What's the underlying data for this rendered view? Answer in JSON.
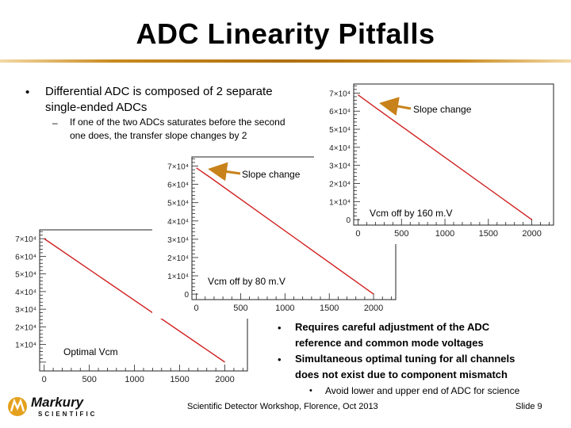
{
  "slide": {
    "title": "ADC Linearity Pitfalls",
    "bullet_1": "Differential ADC is composed of 2 separate single-ended ADCs",
    "sub_bullet_1": "If one of the two ADCs saturates before the second one does, the transfer slope changes by 2",
    "right_bullet_1": "Requires careful adjustment of the ADC reference and common mode voltages",
    "right_bullet_2": "Simultaneous optimal tuning for all channels does not exist due to component mismatch",
    "right_sub_bullet_1": "Avoid lower and upper end of ADC for science",
    "footer": "Scientific Detector Workshop, Florence, Oct 2013",
    "slide_number": "Slide 9",
    "bullet_glyph": "•",
    "dash_glyph": "–"
  },
  "logo": {
    "name": "Markury",
    "subtitle": "SCIENTIFIC",
    "accent_color": "#e5a11e",
    "text_color": "#111111"
  },
  "annotations": {
    "slope_change_top": "Slope change",
    "slope_change_mid": "Slope change",
    "vcm_160": "Vcm off by 160 m.V",
    "vcm_80": "Vcm off by 80 m.V",
    "optimal": "Optimal Vcm"
  },
  "colors": {
    "line": "#d02020",
    "arrow": "#c8821a",
    "rule": "#c98a1e"
  },
  "chart_data": [
    {
      "type": "line",
      "id": "optimal",
      "x_ticks": [
        "0",
        "500",
        "1000",
        "1500",
        "2000"
      ],
      "y_ticks": [
        "1×10⁴",
        "2×10⁴",
        "3×10⁴",
        "4×10⁴",
        "5×10⁴",
        "6×10⁴",
        "7×10⁴"
      ],
      "xlim": [
        -50,
        2250
      ],
      "ylim": [
        -5000,
        75000
      ],
      "x": [
        0,
        2000
      ],
      "y": [
        70000,
        0
      ]
    },
    {
      "type": "line",
      "id": "vcm_80",
      "x_ticks": [
        "0",
        "500",
        "1000",
        "1500",
        "2000"
      ],
      "y_ticks": [
        "0",
        "1×10⁴",
        "2×10⁴",
        "3×10⁴",
        "4×10⁴",
        "5×10⁴",
        "6×10⁴",
        "7×10⁴"
      ],
      "xlim": [
        -50,
        2250
      ],
      "ylim": [
        -3000,
        75000
      ],
      "x": [
        0,
        150,
        2000
      ],
      "y": [
        69000,
        64000,
        0
      ]
    },
    {
      "type": "line",
      "id": "vcm_160",
      "x_ticks": [
        "0",
        "500",
        "1000",
        "1500",
        "2000"
      ],
      "y_ticks": [
        "0",
        "1×10⁴",
        "2×10⁴",
        "3×10⁴",
        "4×10⁴",
        "5×10⁴",
        "6×10⁴",
        "7×10⁴"
      ],
      "xlim": [
        -50,
        2250
      ],
      "ylim": [
        -3000,
        75000
      ],
      "x": [
        0,
        200,
        2000
      ],
      "y": [
        69000,
        62000,
        0
      ]
    }
  ]
}
